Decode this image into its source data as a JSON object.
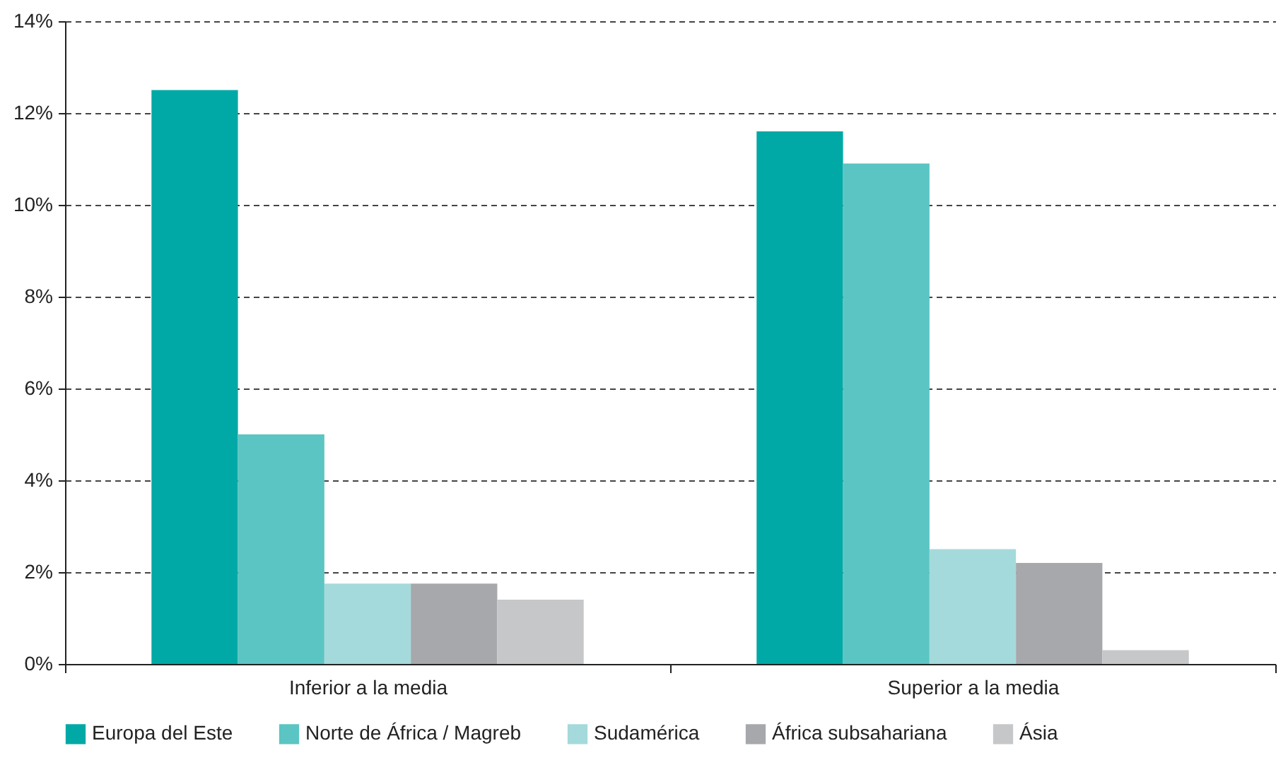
{
  "chart_data": {
    "type": "bar",
    "categories": [
      "Inferior a la media",
      "Superior a la media"
    ],
    "series": [
      {
        "name": "Europa del Este",
        "color": "#00a9a6",
        "values": [
          12.5,
          11.6
        ]
      },
      {
        "name": "Norte de África / Magreb",
        "color": "#5bc5c3",
        "values": [
          5.0,
          10.9
        ]
      },
      {
        "name": "Sudamérica",
        "color": "#a4dadb",
        "values": [
          1.75,
          2.5
        ]
      },
      {
        "name": "África subsahariana",
        "color": "#a7a8ac",
        "values": [
          1.75,
          2.2
        ]
      },
      {
        "name": "Ásia",
        "color": "#c6c7c9",
        "values": [
          1.4,
          0.3
        ]
      }
    ],
    "ylim": [
      0,
      14
    ],
    "yticks": [
      {
        "value": 0,
        "label": "0%"
      },
      {
        "value": 2,
        "label": "2%"
      },
      {
        "value": 4,
        "label": "4%"
      },
      {
        "value": 6,
        "label": "6%"
      },
      {
        "value": 8,
        "label": "8%"
      },
      {
        "value": 10,
        "label": "10%"
      },
      {
        "value": 12,
        "label": "12%"
      },
      {
        "value": 14,
        "label": "14%"
      }
    ],
    "grid": "y",
    "legend": "bottom"
  }
}
